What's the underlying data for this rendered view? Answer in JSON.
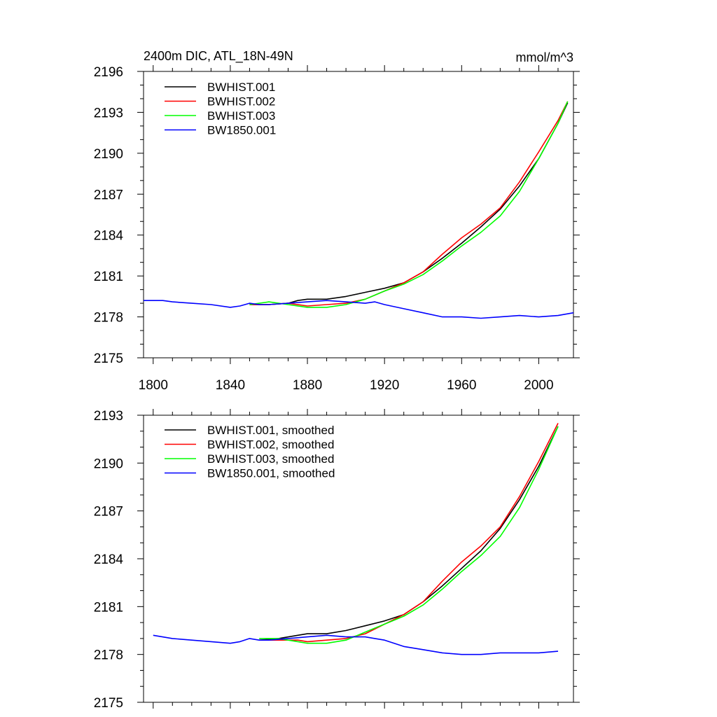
{
  "chart_data": [
    {
      "type": "line",
      "title": "2400m DIC, ATL_18N-49N",
      "units": "mmol/m^3",
      "xlabel": "",
      "ylabel": "",
      "xlim": [
        1795,
        2018
      ],
      "ylim": [
        2175,
        2196
      ],
      "xticks": [
        1800,
        1840,
        1880,
        1920,
        1960,
        2000
      ],
      "xtick_labels": [
        "1800",
        "1840",
        "1880",
        "1920",
        "1960",
        "2000"
      ],
      "yticks": [
        2175,
        2178,
        2181,
        2184,
        2187,
        2190,
        2193,
        2196
      ],
      "ytick_labels": [
        "2175",
        "2178",
        "2181",
        "2184",
        "2187",
        "2190",
        "2193",
        "2196"
      ],
      "legend_position": "top-left",
      "series": [
        {
          "name": "BWHIST.001",
          "color": "#000000",
          "x": [
            1850,
            1860,
            1870,
            1875,
            1880,
            1890,
            1900,
            1910,
            1920,
            1930,
            1940,
            1950,
            1960,
            1970,
            1980,
            1990,
            2000,
            2010,
            2015
          ],
          "values": [
            2178.9,
            2178.9,
            2179.0,
            2179.2,
            2179.3,
            2179.3,
            2179.5,
            2179.8,
            2180.1,
            2180.5,
            2181.3,
            2182.3,
            2183.4,
            2184.6,
            2185.9,
            2187.6,
            2189.6,
            2192.2,
            2193.7
          ]
        },
        {
          "name": "BWHIST.002",
          "color": "#ff0000",
          "x": [
            1850,
            1860,
            1870,
            1880,
            1890,
            1900,
            1910,
            1920,
            1930,
            1940,
            1950,
            1960,
            1970,
            1980,
            1990,
            2000,
            2010,
            2015
          ],
          "values": [
            2178.9,
            2178.9,
            2179.0,
            2178.8,
            2178.9,
            2179.0,
            2179.3,
            2179.9,
            2180.5,
            2181.3,
            2182.6,
            2183.8,
            2184.8,
            2186.0,
            2187.9,
            2190.1,
            2192.4,
            2193.8
          ]
        },
        {
          "name": "BWHIST.003",
          "color": "#00ff00",
          "x": [
            1850,
            1860,
            1870,
            1880,
            1890,
            1900,
            1910,
            1920,
            1930,
            1940,
            1950,
            1960,
            1970,
            1980,
            1990,
            2000,
            2010,
            2015
          ],
          "values": [
            2178.9,
            2179.1,
            2178.9,
            2178.7,
            2178.7,
            2178.9,
            2179.3,
            2179.9,
            2180.4,
            2181.1,
            2182.1,
            2183.2,
            2184.2,
            2185.4,
            2187.2,
            2189.6,
            2192.2,
            2193.8
          ]
        },
        {
          "name": "BW1850.001",
          "color": "#0000ff",
          "x": [
            1795,
            1800,
            1805,
            1810,
            1820,
            1830,
            1840,
            1845,
            1850,
            1855,
            1860,
            1870,
            1880,
            1890,
            1900,
            1910,
            1915,
            1920,
            1930,
            1940,
            1950,
            1960,
            1970,
            1980,
            1990,
            2000,
            2010,
            2018
          ],
          "values": [
            2179.2,
            2179.2,
            2179.2,
            2179.1,
            2179.0,
            2178.9,
            2178.7,
            2178.8,
            2179.0,
            2178.9,
            2178.9,
            2179.0,
            2179.1,
            2179.2,
            2179.1,
            2179.0,
            2179.1,
            2178.9,
            2178.6,
            2178.3,
            2178.0,
            2178.0,
            2177.9,
            2178.0,
            2178.1,
            2178.0,
            2178.1,
            2178.3
          ]
        }
      ]
    },
    {
      "type": "line",
      "title": "",
      "xlabel": "",
      "ylabel": "",
      "xlim": [
        1795,
        2018
      ],
      "ylim": [
        2175,
        2193
      ],
      "xticks": [
        1800,
        1840,
        1880,
        1920,
        1960,
        2000
      ],
      "yticks": [
        2175,
        2178,
        2181,
        2184,
        2187,
        2190,
        2193
      ],
      "ytick_labels": [
        "2175",
        "2178",
        "2181",
        "2184",
        "2187",
        "2190",
        "2193"
      ],
      "legend_position": "top-left",
      "series": [
        {
          "name": "BWHIST.001, smoothed",
          "color": "#000000",
          "x": [
            1855,
            1865,
            1875,
            1880,
            1890,
            1900,
            1910,
            1920,
            1930,
            1940,
            1950,
            1960,
            1970,
            1980,
            1990,
            2000,
            2010
          ],
          "values": [
            2178.9,
            2179.0,
            2179.2,
            2179.3,
            2179.3,
            2179.5,
            2179.8,
            2180.1,
            2180.5,
            2181.3,
            2182.3,
            2183.4,
            2184.5,
            2185.9,
            2187.7,
            2189.8,
            2192.3
          ]
        },
        {
          "name": "BWHIST.002, smoothed",
          "color": "#ff0000",
          "x": [
            1855,
            1865,
            1875,
            1880,
            1890,
            1900,
            1910,
            1920,
            1930,
            1940,
            1950,
            1960,
            1970,
            1980,
            1990,
            2000,
            2010
          ],
          "values": [
            2178.9,
            2178.9,
            2178.9,
            2178.8,
            2178.9,
            2179.0,
            2179.3,
            2179.9,
            2180.5,
            2181.3,
            2182.6,
            2183.8,
            2184.8,
            2186.0,
            2187.9,
            2190.1,
            2192.5
          ]
        },
        {
          "name": "BWHIST.003, smoothed",
          "color": "#00ff00",
          "x": [
            1855,
            1865,
            1875,
            1880,
            1890,
            1900,
            1910,
            1920,
            1930,
            1940,
            1950,
            1960,
            1970,
            1980,
            1990,
            2000,
            2010
          ],
          "values": [
            2179.0,
            2179.0,
            2178.8,
            2178.7,
            2178.7,
            2178.9,
            2179.4,
            2179.9,
            2180.4,
            2181.1,
            2182.1,
            2183.2,
            2184.2,
            2185.4,
            2187.2,
            2189.6,
            2192.3
          ]
        },
        {
          "name": "BW1850.001, smoothed",
          "color": "#0000ff",
          "x": [
            1800,
            1810,
            1820,
            1830,
            1840,
            1845,
            1850,
            1855,
            1860,
            1870,
            1880,
            1890,
            1900,
            1910,
            1915,
            1920,
            1930,
            1940,
            1950,
            1960,
            1970,
            1980,
            1990,
            2000,
            2010
          ],
          "values": [
            2179.2,
            2179.0,
            2178.9,
            2178.8,
            2178.7,
            2178.8,
            2179.0,
            2178.9,
            2178.9,
            2179.0,
            2179.1,
            2179.2,
            2179.1,
            2179.1,
            2179.0,
            2178.9,
            2178.5,
            2178.3,
            2178.1,
            2178.0,
            2178.0,
            2178.1,
            2178.1,
            2178.1,
            2178.2
          ]
        }
      ]
    }
  ]
}
